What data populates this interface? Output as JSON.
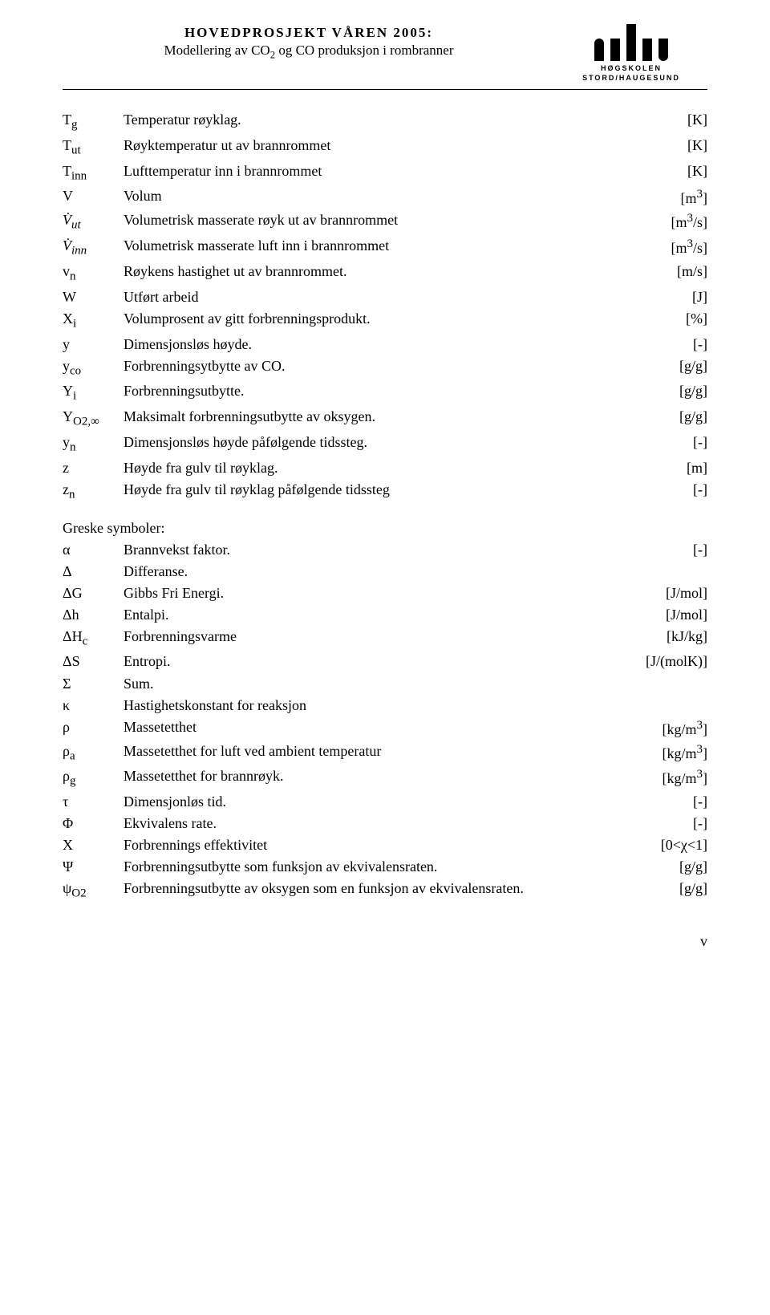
{
  "header": {
    "title": "HOVEDPROSJEKT VÅREN 2005:",
    "subtitle_pre": "Modellering av CO",
    "subtitle_sub": "2",
    "subtitle_post": " og CO produksjon i rombranner",
    "logo_text": "HØGSKOLEN STORD/HAUGESUND"
  },
  "latin": [
    {
      "sym_html": "T<sub>g</sub>",
      "desc": "Temperatur røyklag.",
      "unit": "[K]"
    },
    {
      "sym_html": "T<sub>ut</sub>",
      "desc": "Røyktemperatur ut av brannrommet",
      "unit": "[K]"
    },
    {
      "sym_html": "T<sub>inn</sub>",
      "desc": "Lufttemperatur inn i brannrommet",
      "unit": "[K]"
    },
    {
      "sym_html": "V",
      "desc": "Volum",
      "unit": "[m<sup>3</sup>]"
    },
    {
      "sym_html": "<i>V̇</i><sub style='font-style:italic'>ut</sub>",
      "desc": "Volumetrisk masserate røyk ut av brannrommet",
      "unit": "[m<sup>3</sup>/s]"
    },
    {
      "sym_html": "<i>V̇</i><sub style='font-style:italic'>inn</sub>",
      "desc": "Volumetrisk masserate luft inn i brannrommet",
      "unit": "[m<sup>3</sup>/s]"
    },
    {
      "sym_html": "v<sub>n</sub>",
      "desc": "Røykens hastighet ut av brannrommet.",
      "unit": "[m/s]"
    },
    {
      "sym_html": "W",
      "desc": "Utført arbeid",
      "unit": "[J]"
    },
    {
      "sym_html": "X<sub>i</sub>",
      "desc": "Volumprosent av gitt forbrenningsprodukt.",
      "unit": "[%]"
    },
    {
      "sym_html": "y",
      "desc": "Dimensjonsløs høyde.",
      "unit": "[-]"
    },
    {
      "sym_html": "y<sub>co</sub>",
      "desc": "Forbrenningsytbytte av CO.",
      "unit": "[g/g]"
    },
    {
      "sym_html": "Y<sub>i</sub>",
      "desc": "Forbrenningsutbytte.",
      "unit": "[g/g]"
    },
    {
      "sym_html": "Y<sub>O2,∞</sub>",
      "desc": "Maksimalt forbrenningsutbytte av oksygen.",
      "unit": "[g/g]"
    },
    {
      "sym_html": "y<sub>n</sub>",
      "desc": "Dimensjonsløs høyde påfølgende tidssteg.",
      "unit": "[-]"
    },
    {
      "sym_html": "z",
      "desc": "Høyde fra gulv til røyklag.",
      "unit": "[m]"
    },
    {
      "sym_html": "z<sub>n</sub>",
      "desc": "Høyde fra gulv til røyklag påfølgende tidssteg",
      "unit": "[-]"
    }
  ],
  "greek_heading": "Greske symboler:",
  "greek": [
    {
      "sym_html": "α",
      "desc": "Brannvekst faktor.",
      "unit": "[-]"
    },
    {
      "sym_html": "Δ",
      "desc": "Differanse.",
      "unit": ""
    },
    {
      "sym_html": "ΔG",
      "desc": "Gibbs Fri Energi.",
      "unit": "[J/mol]"
    },
    {
      "sym_html": "Δh",
      "desc": "Entalpi.",
      "unit": "[J/mol]"
    },
    {
      "sym_html": "ΔH<sub>c</sub>",
      "desc": "Forbrenningsvarme",
      "unit": "[kJ/kg]"
    },
    {
      "sym_html": "ΔS",
      "desc": "Entropi.",
      "unit": "[J/(molK)]"
    },
    {
      "sym_html": "Σ",
      "desc": "Sum.",
      "unit": ""
    },
    {
      "sym_html": "κ",
      "desc": "Hastighetskonstant for reaksjon",
      "unit": ""
    },
    {
      "sym_html": "ρ",
      "desc": "Massetetthet",
      "unit": "[kg/m<sup>3</sup>]"
    },
    {
      "sym_html": "ρ<sub>a</sub>",
      "desc": "Massetetthet for luft ved ambient temperatur",
      "unit": "[kg/m<sup>3</sup>]"
    },
    {
      "sym_html": "ρ<sub>g</sub>",
      "desc": "Massetetthet for brannrøyk.",
      "unit": "[kg/m<sup>3</sup>]"
    },
    {
      "sym_html": "τ",
      "desc": "Dimensjonløs tid.",
      "unit": "[-]"
    },
    {
      "sym_html": "Φ",
      "desc": "Ekvivalens rate.",
      "unit": "[-]"
    },
    {
      "sym_html": "Χ",
      "desc": "Forbrennings effektivitet",
      "unit": "[0&lt;χ&lt;1]"
    },
    {
      "sym_html": "Ψ",
      "desc": "Forbrenningsutbytte som funksjon av ekvivalensraten.",
      "unit": "[g/g]"
    },
    {
      "sym_html": "ψ<sub>O2</sub>",
      "desc": "Forbrenningsutbytte av oksygen som en funksjon av ekvivalensraten.",
      "unit": "[g/g]"
    }
  ],
  "footer": {
    "page_marker": "v"
  }
}
